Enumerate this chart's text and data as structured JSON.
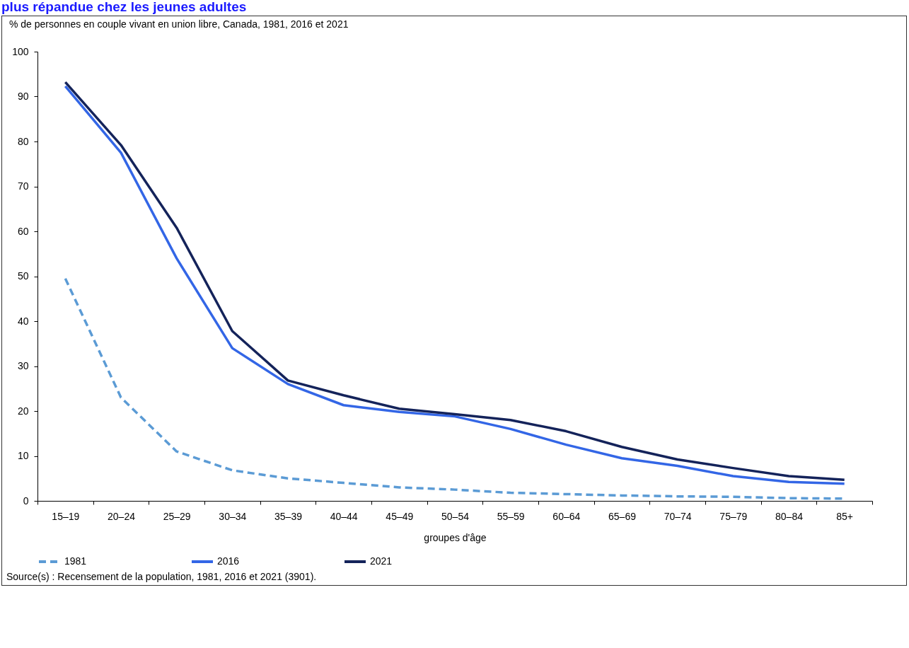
{
  "chart_data": {
    "type": "line",
    "title": "plus répandue chez les jeunes adultes",
    "subtitle": "% de personnes en couple vivant en union libre, Canada, 1981, 2016 et 2021",
    "xlabel": "groupes d'âge",
    "categories": [
      "15–19",
      "20–24",
      "25–29",
      "30–34",
      "35–39",
      "40–44",
      "45–49",
      "50–54",
      "55–59",
      "60–64",
      "65–69",
      "70–74",
      "75–79",
      "80–84",
      "85+"
    ],
    "series": [
      {
        "name": "1981",
        "color": "#5b9bd5",
        "line_style": "dashed",
        "values": [
          49.5,
          23,
          11,
          6.8,
          5,
          4,
          3,
          2.5,
          1.8,
          1.5,
          1.2,
          1,
          0.9,
          0.6,
          0.5
        ]
      },
      {
        "name": "2016",
        "color": "#3366e6",
        "line_style": "solid",
        "values": [
          92.3,
          77.5,
          54,
          34,
          26,
          21.3,
          19.8,
          18.8,
          16,
          12.5,
          9.5,
          7.8,
          5.5,
          4.2,
          3.8
        ]
      },
      {
        "name": "2021",
        "color": "#14235a",
        "line_style": "solid",
        "values": [
          93.2,
          79.2,
          60.8,
          37.8,
          26.8,
          23.5,
          20.5,
          19.3,
          18,
          15.5,
          12,
          9.2,
          7.3,
          5.5,
          4.7
        ]
      }
    ],
    "ylim": [
      0,
      100
    ],
    "yticks": [
      0,
      10,
      20,
      30,
      40,
      50,
      60,
      70,
      80,
      90,
      100
    ],
    "grid": false,
    "legend": "bottom",
    "marker": "none",
    "annotations": [
      "Source(s) : Recensement de la population, 1981, 2016 et 2021 (3901)."
    ]
  }
}
